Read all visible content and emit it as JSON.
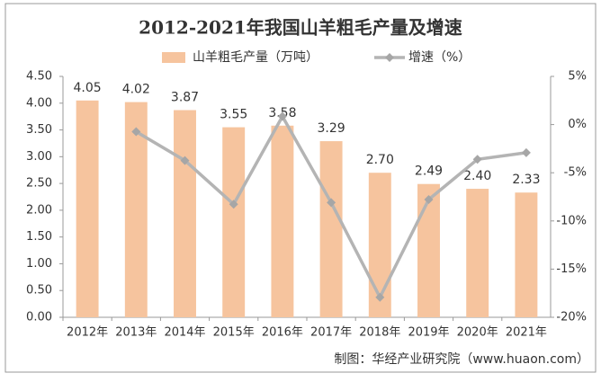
{
  "chart_data": {
    "type": "bar_line",
    "title": "2012-2021年我国山羊粗毛产量及增速",
    "source": "制图：华经产业研究院（www.huaon.com）",
    "categories": [
      "2012年",
      "2013年",
      "2014年",
      "2015年",
      "2016年",
      "2017年",
      "2018年",
      "2019年",
      "2020年",
      "2021年"
    ],
    "series": [
      {
        "name": "山羊粗毛产量（万吨）",
        "color": "#f6c49e",
        "type": "bar",
        "values": [
          4.05,
          4.02,
          3.87,
          3.55,
          3.58,
          3.29,
          2.7,
          2.49,
          2.4,
          2.33
        ],
        "value_labels": [
          "4.05",
          "4.02",
          "3.87",
          "3.55",
          "3.58",
          "3.29",
          "2.70",
          "2.49",
          "2.40",
          "2.33"
        ]
      },
      {
        "name": "增速（%）",
        "color": "#b4b4b4",
        "marker_color": "#a6a6a6",
        "type": "line",
        "axis": "y2",
        "values": [
          null,
          -0.74,
          -3.73,
          -8.27,
          0.85,
          -8.1,
          -17.93,
          -7.78,
          -3.61,
          -2.92
        ]
      }
    ],
    "ylim": [
      0,
      4.5
    ],
    "yticks": [
      {
        "value": 0,
        "label": "0.00"
      },
      {
        "value": 0.5,
        "label": "0.50"
      },
      {
        "value": 1,
        "label": "1.00"
      },
      {
        "value": 1.5,
        "label": "1.50"
      },
      {
        "value": 2,
        "label": "2.00"
      },
      {
        "value": 2.5,
        "label": "2.50"
      },
      {
        "value": 3,
        "label": "3.00"
      },
      {
        "value": 3.5,
        "label": "3.50"
      },
      {
        "value": 4,
        "label": "4.00"
      },
      {
        "value": 4.5,
        "label": "4.50"
      }
    ],
    "y2lim": [
      -20,
      5
    ],
    "y2ticks": [
      {
        "value": -20,
        "label": "-20%"
      },
      {
        "value": -15,
        "label": "-15%"
      },
      {
        "value": -10,
        "label": "-10%"
      },
      {
        "value": -5,
        "label": "-5%"
      },
      {
        "value": 0,
        "label": "0%"
      },
      {
        "value": 5,
        "label": "5%"
      }
    ],
    "grid": false
  }
}
